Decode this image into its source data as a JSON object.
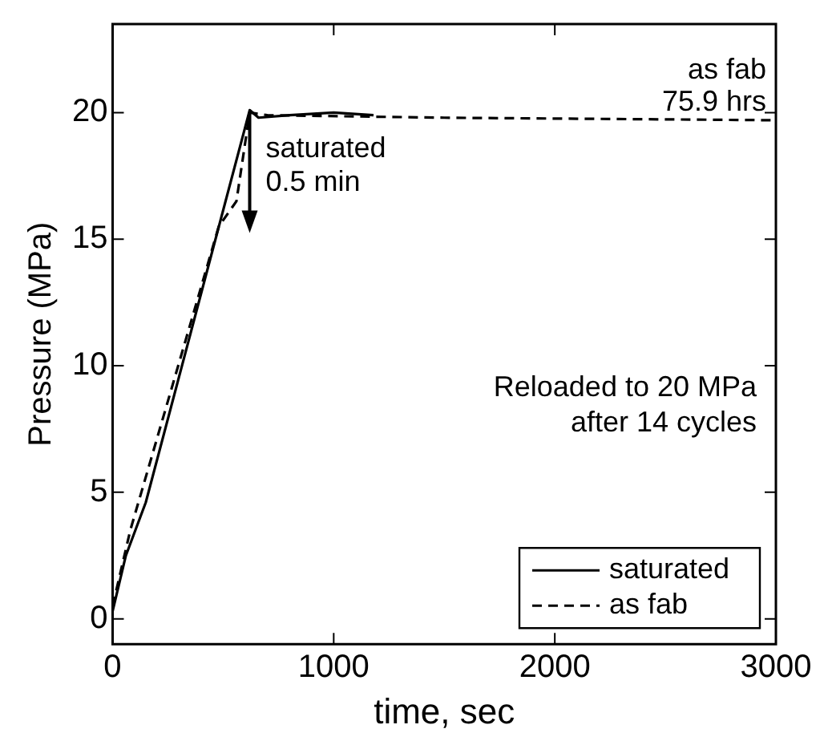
{
  "chart_data": {
    "type": "line",
    "xlabel": "time, sec",
    "ylabel": "Pressure (MPa)",
    "xlim": [
      0,
      3000
    ],
    "xticks": [
      0,
      1000,
      2000,
      3000
    ],
    "ylim": [
      -1,
      23.5
    ],
    "yticks": [
      0,
      5,
      10,
      15,
      20
    ],
    "series": [
      {
        "name": "saturated",
        "color": "#000000",
        "line_style": "solid",
        "x": [
          0,
          60,
          150,
          620,
          660,
          800,
          1000,
          1180
        ],
        "values": [
          0.3,
          2.5,
          4.6,
          20.1,
          19.8,
          19.9,
          20,
          19.9
        ]
      },
      {
        "name": "as fab",
        "color": "#000000",
        "line_style": "dashed",
        "x": [
          0,
          80,
          480,
          560,
          620,
          700,
          1500,
          3000
        ],
        "values": [
          0.5,
          3.5,
          15.5,
          16.5,
          20,
          19.9,
          19.8,
          19.7
        ]
      }
    ],
    "annotations": [
      {
        "text": "as fab\n75.9 hrs",
        "x": 3000,
        "y": 19.7
      },
      {
        "text": "saturated\n0.5 min",
        "x": 620,
        "y": 20
      },
      "Reloaded to 20 MPa\nafter 14 cycles"
    ],
    "legend": "bottom right",
    "grid": false,
    "marker": "none"
  }
}
